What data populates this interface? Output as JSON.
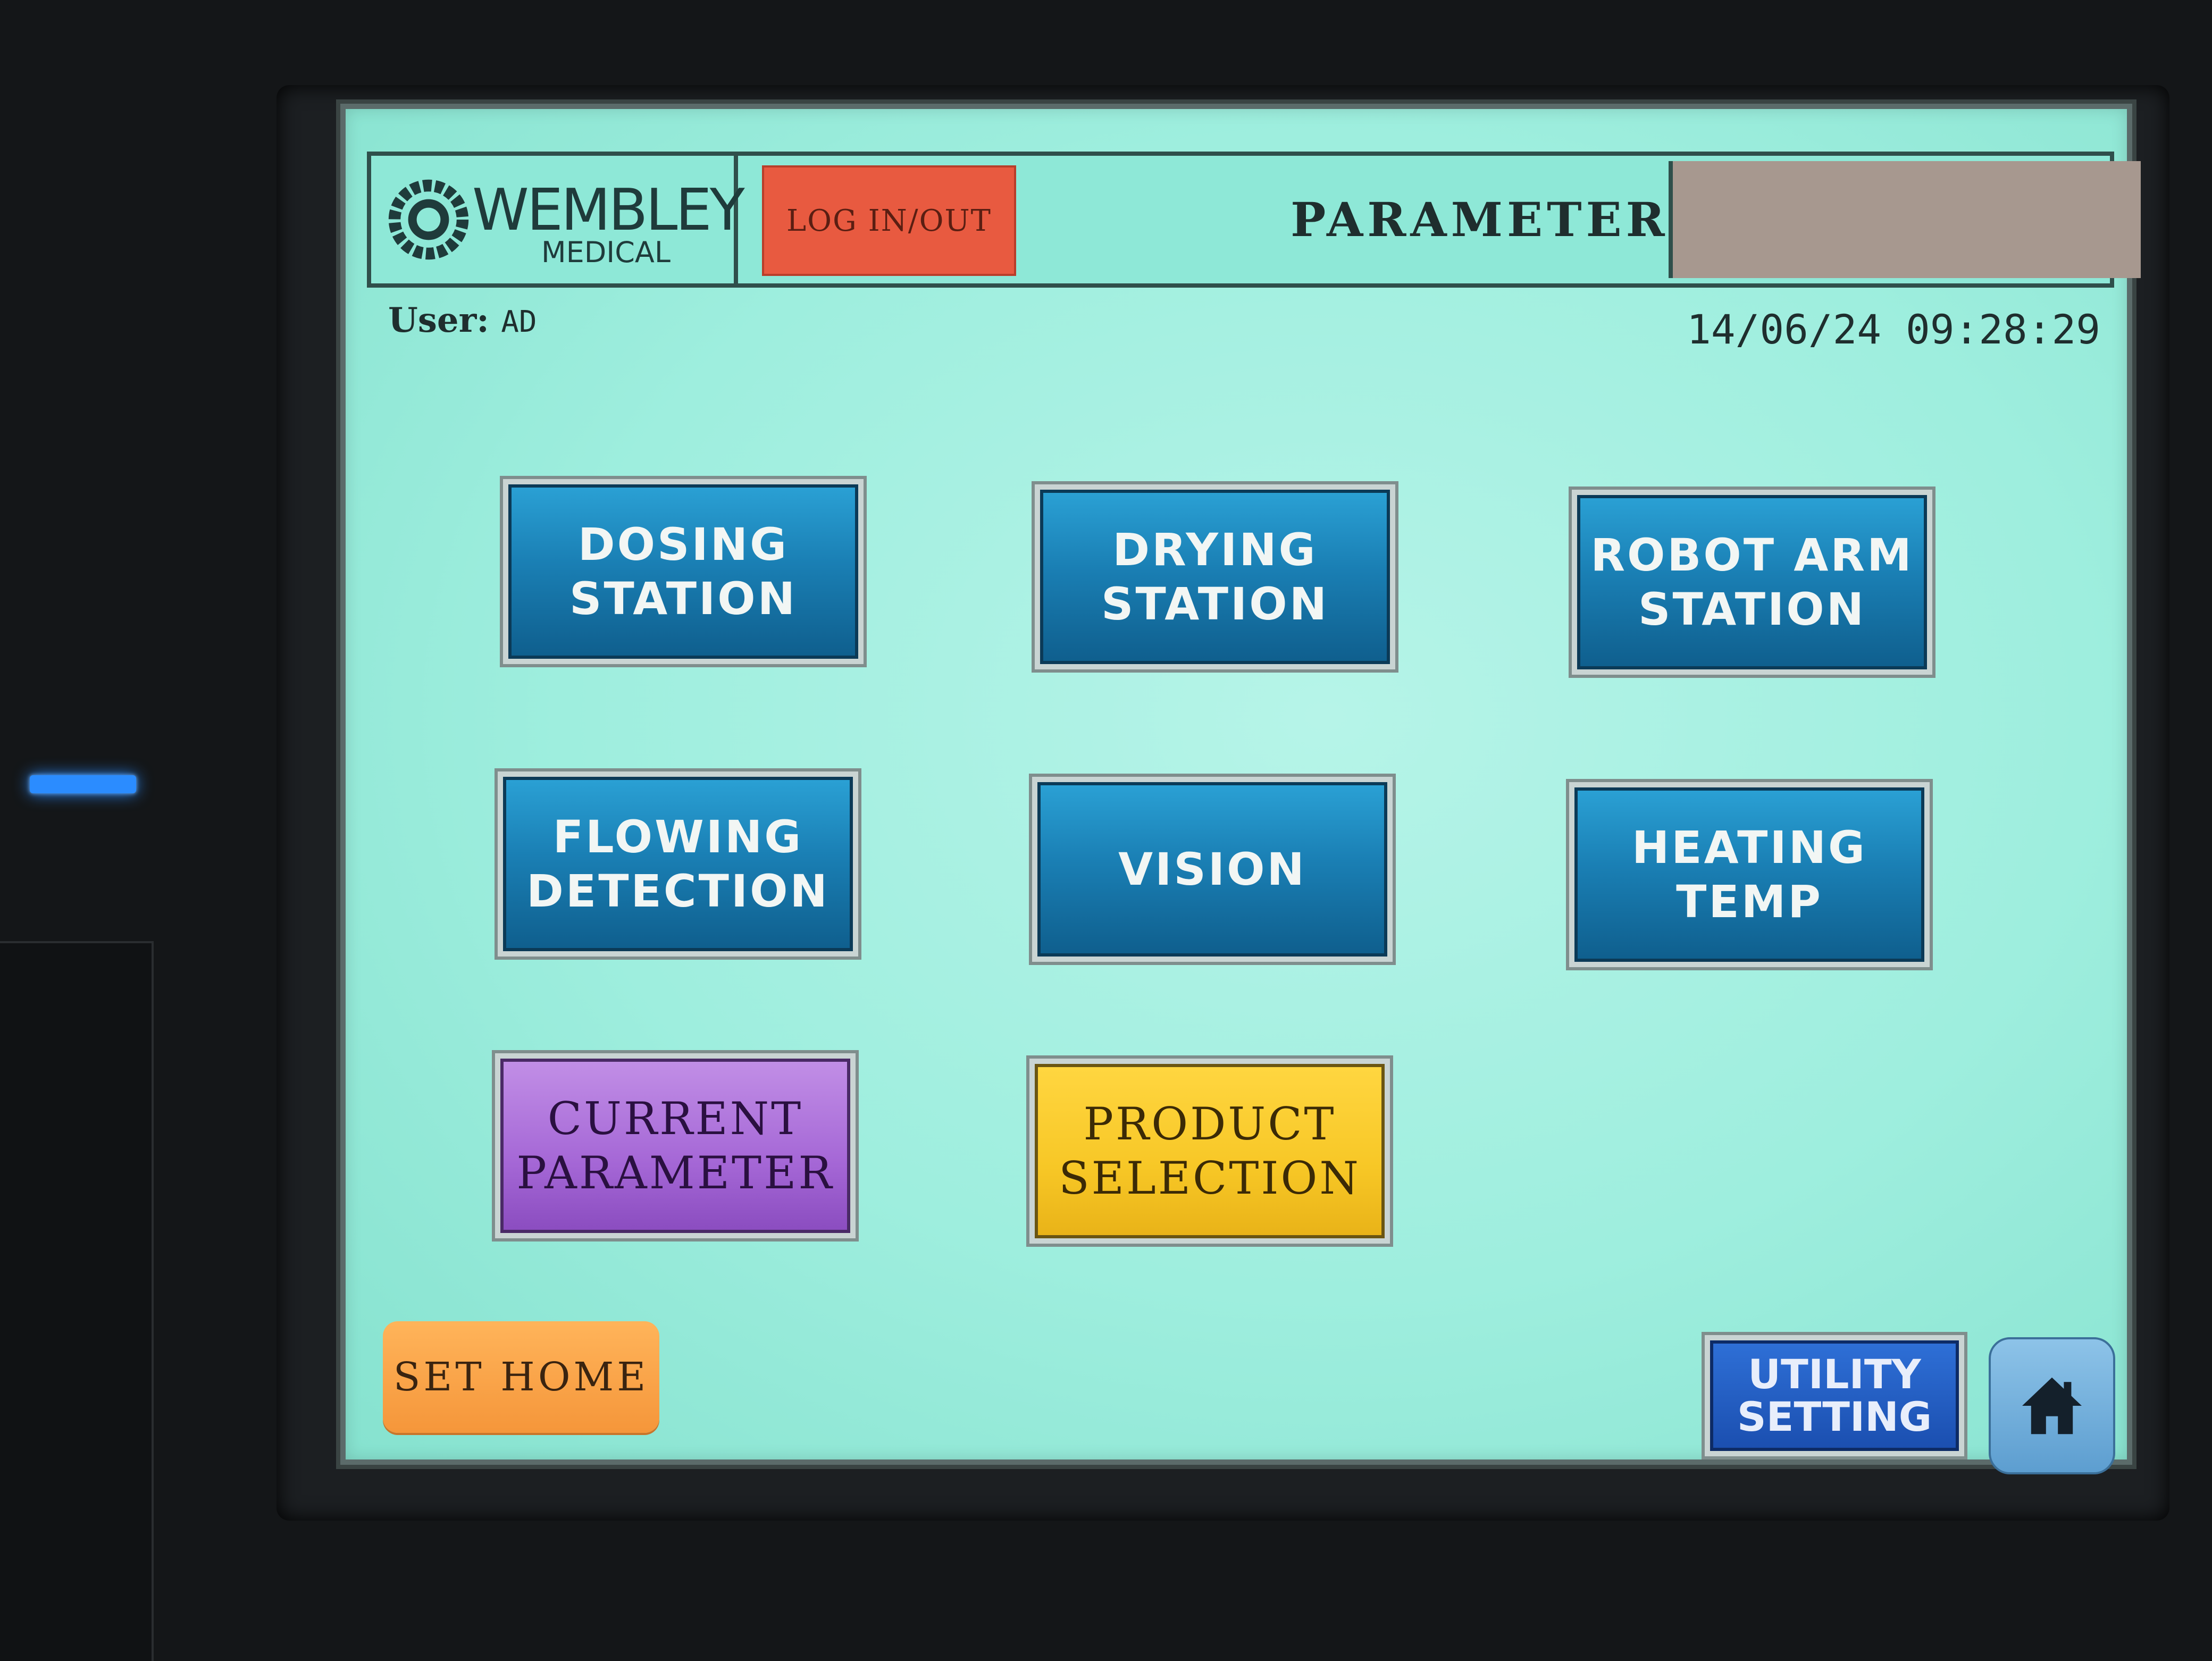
{
  "header": {
    "logo_name": "WEMBLEY",
    "logo_sub": "MEDICAL",
    "login_label": "LOG IN/OUT",
    "title": "PARAMETER"
  },
  "status": {
    "user_label": "User:",
    "user_value": "AD",
    "datetime": "14/06/24 09:28:29"
  },
  "menu": {
    "dosing": [
      "DOSING",
      "STATION"
    ],
    "drying": [
      "DRYING",
      "STATION"
    ],
    "robot_arm": [
      "ROBOT ARM",
      "STATION"
    ],
    "flowing": [
      "FLOWING",
      "DETECTION"
    ],
    "vision": [
      "VISION"
    ],
    "heating": [
      "HEATING",
      "TEMP"
    ],
    "current_param": [
      "CURRENT",
      "PARAMETER"
    ],
    "product_sel": [
      "PRODUCT",
      "SELECTION"
    ]
  },
  "footer": {
    "set_home_label": "SET HOME",
    "utility": [
      "UTILITY",
      "SETTING"
    ],
    "home_icon": "home-icon"
  },
  "colors": {
    "screen_bg": "#9eeede",
    "station_button": "#1a7fb4",
    "current_parameter": "#a567d6",
    "product_selection": "#f7c726",
    "login_button": "#e85a40",
    "set_home": "#f5963a",
    "utility": "#1b4fb0"
  }
}
